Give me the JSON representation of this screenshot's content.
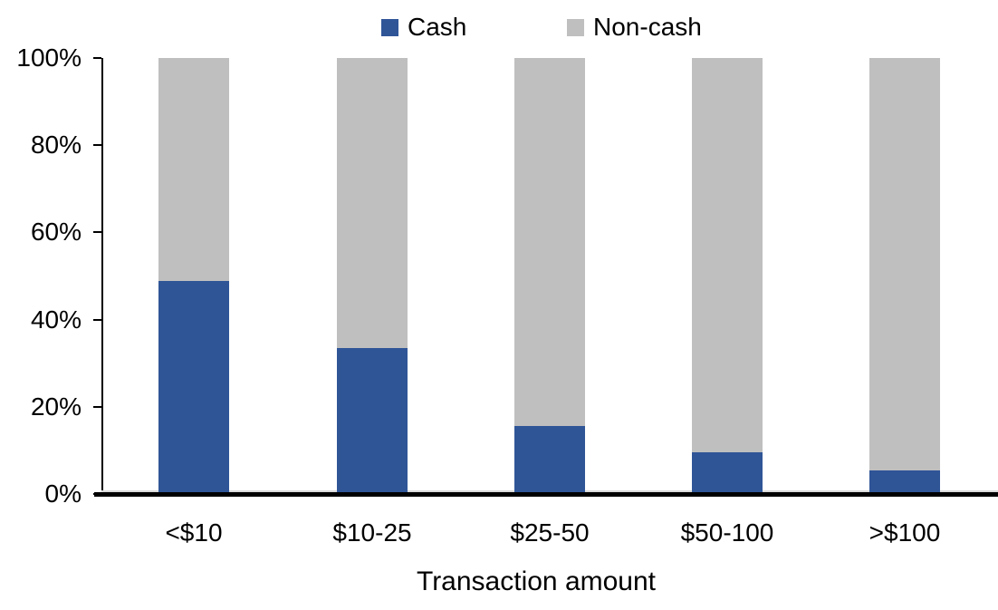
{
  "chart_data": {
    "type": "bar",
    "stacked": true,
    "orientation": "vertical",
    "title": "",
    "xlabel": "Transaction amount",
    "ylabel": "",
    "categories": [
      "<$10",
      "$10-25",
      "$25-50",
      "$50-100",
      ">$100"
    ],
    "series": [
      {
        "name": "Cash",
        "color": "#2F5597",
        "values": [
          48.9,
          33.4,
          15.6,
          9.6,
          5.4
        ]
      },
      {
        "name": "Non-cash",
        "color": "#BFBFBF",
        "values": [
          51.1,
          66.6,
          84.4,
          90.4,
          94.6
        ]
      }
    ],
    "ylim": [
      0,
      100
    ],
    "ytick_labels": [
      "0%",
      "20%",
      "40%",
      "60%",
      "80%",
      "100%"
    ],
    "grid": false,
    "legend_position": "top-center"
  },
  "legend": {
    "cash_label": "Cash",
    "noncash_label": "Non-cash",
    "cash_color": "#2F5597",
    "noncash_color": "#BFBFBF"
  },
  "axes": {
    "x_title": "Transaction amount"
  }
}
